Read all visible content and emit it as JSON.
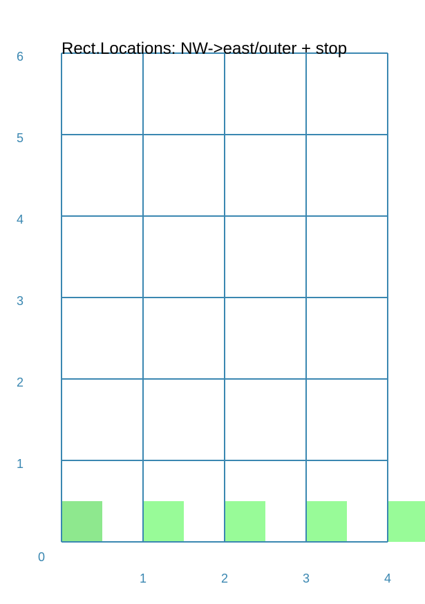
{
  "title": "Rect.Locations: NW->east/outer + stop",
  "grid": {
    "cols": 4,
    "rows": 6
  },
  "y_labels": [
    "0",
    "1",
    "2",
    "3",
    "4",
    "5",
    "6"
  ],
  "x_labels": [
    "1",
    "2",
    "3",
    "4"
  ],
  "squares": [
    {
      "col": 0,
      "color": "#8ee88e"
    },
    {
      "col": 1,
      "color": "#98fb98"
    },
    {
      "col": 2,
      "color": "#98fb98"
    },
    {
      "col": 3,
      "color": "#98fb98"
    },
    {
      "col": 4,
      "color": "#98fb98"
    }
  ],
  "colors": {
    "grid": "#3a87b1",
    "labels": "#3a87b1",
    "title": "#000000"
  }
}
